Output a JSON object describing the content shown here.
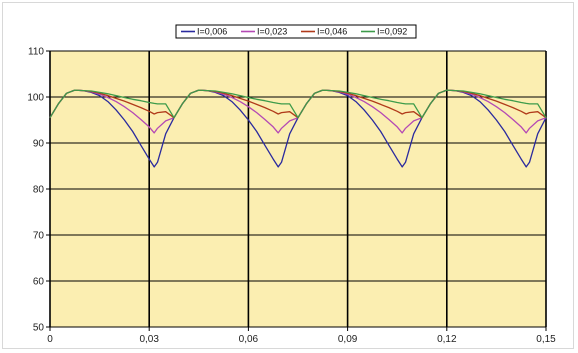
{
  "chart_data": {
    "type": "line",
    "title": "",
    "xlabel": "",
    "ylabel": "",
    "xlim": [
      0,
      0.15
    ],
    "ylim": [
      50,
      110
    ],
    "x_ticks": [
      "0",
      "0,03",
      "0,06",
      "0,09",
      "0,12",
      "0,15"
    ],
    "y_ticks": [
      "50",
      "60",
      "70",
      "80",
      "90",
      "100",
      "110"
    ],
    "grid": true,
    "legend_position": "top",
    "plot_background": "#fbeeb1",
    "period": 0.0375,
    "x": [
      0.0,
      0.0025,
      0.005,
      0.0075,
      0.01,
      0.0125,
      0.015,
      0.0175,
      0.02,
      0.0225,
      0.025,
      0.0275,
      0.03,
      0.0315,
      0.0325,
      0.035,
      0.0375
    ],
    "series": [
      {
        "name": "I=0,006",
        "color": "#2a2a9e",
        "values": [
          95.5,
          98.5,
          100.8,
          101.5,
          101.4,
          101.0,
          100.3,
          99.0,
          97.2,
          95.0,
          92.5,
          89.5,
          86.5,
          84.8,
          85.8,
          92.0,
          95.5
        ]
      },
      {
        "name": "I=0,023",
        "color": "#b449b4",
        "values": [
          95.5,
          98.5,
          100.8,
          101.5,
          101.4,
          101.1,
          100.6,
          99.9,
          99.0,
          97.9,
          96.6,
          95.1,
          93.5,
          92.2,
          93.2,
          94.8,
          95.5
        ]
      },
      {
        "name": "I=0,046",
        "color": "#b03a1a",
        "values": [
          95.5,
          98.5,
          100.8,
          101.5,
          101.4,
          101.2,
          100.8,
          100.3,
          99.7,
          99.1,
          98.4,
          97.7,
          96.9,
          96.3,
          96.6,
          96.8,
          95.5
        ]
      },
      {
        "name": "I=0,092",
        "color": "#3d9b4a",
        "values": [
          95.5,
          98.5,
          100.8,
          101.5,
          101.4,
          101.3,
          101.0,
          100.7,
          100.3,
          99.9,
          99.5,
          99.2,
          98.8,
          98.6,
          98.5,
          98.5,
          95.5
        ]
      }
    ]
  }
}
